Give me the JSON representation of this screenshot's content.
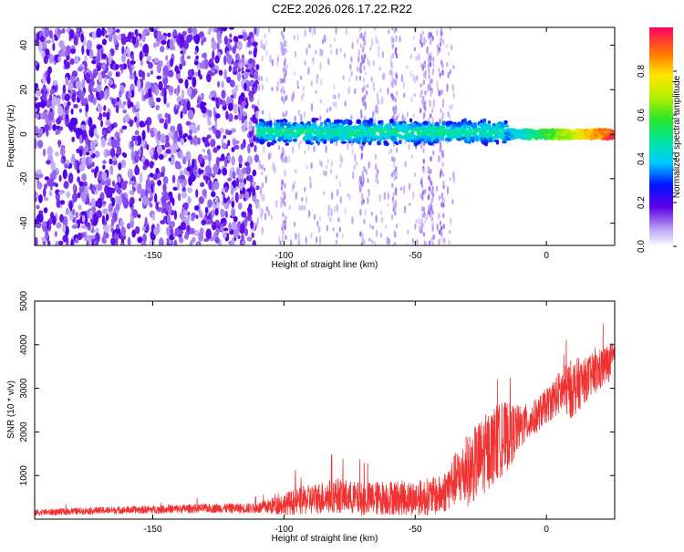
{
  "title": "C2E2.2026.026.17.22.R22",
  "chart_data": [
    {
      "type": "heatmap",
      "xlabel": "Height of straight line (km)",
      "ylabel": "Frequency (Hz)",
      "xlim": [
        -195,
        26
      ],
      "ylim": [
        -50,
        48
      ],
      "xticks": [
        -150,
        -100,
        -50,
        0
      ],
      "yticks": [
        -40,
        -20,
        0,
        20,
        40
      ],
      "colorbar": {
        "label": "Normalized spectral amplitude",
        "range": [
          0,
          1
        ],
        "ticks": [
          0.0,
          0.2,
          0.4,
          0.6,
          0.8
        ]
      },
      "features": [
        {
          "x_range": [
            -195,
            -110
          ],
          "y_range": [
            -50,
            48
          ],
          "amplitude": 0.1,
          "desc": "broadband noise"
        },
        {
          "x_range": [
            -110,
            -15
          ],
          "y_center": 1,
          "half_width": 6,
          "amplitude": 0.3
        },
        {
          "x_range": [
            -15,
            26
          ],
          "y_center": 0,
          "half_width": 2,
          "amplitude": 0.95
        }
      ]
    },
    {
      "type": "line",
      "xlabel": "Height of straight line (km)",
      "ylabel": "SNR (10 * v/v)",
      "xlim": [
        -195,
        26
      ],
      "ylim": [
        0,
        5000
      ],
      "xticks": [
        -150,
        -100,
        -50,
        0
      ],
      "yticks": [
        1000,
        2000,
        3000,
        4000,
        5000
      ],
      "series": [
        {
          "color": "#f03232",
          "x": [
            -195,
            -170,
            -150,
            -130,
            -110,
            -100,
            -90,
            -80,
            -70,
            -60,
            -50,
            -40,
            -35,
            -30,
            -25,
            -20,
            -15,
            -10,
            -5,
            0,
            5,
            10,
            15,
            20,
            26
          ],
          "y": [
            150,
            200,
            220,
            250,
            250,
            350,
            450,
            550,
            450,
            500,
            480,
            550,
            900,
            1100,
            1400,
            1700,
            1900,
            2100,
            2300,
            2600,
            2900,
            3000,
            3200,
            3400,
            3700
          ],
          "amplitude": [
            70,
            80,
            90,
            100,
            120,
            250,
            350,
            400,
            380,
            400,
            400,
            450,
            600,
            800,
            900,
            900,
            800,
            500,
            400,
            400,
            500,
            700,
            500,
            500,
            400
          ]
        }
      ]
    }
  ]
}
